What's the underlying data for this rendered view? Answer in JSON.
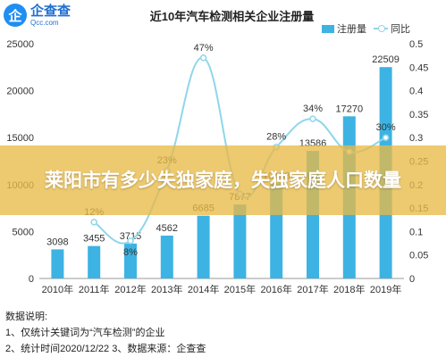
{
  "logo": {
    "mark": "企",
    "name_cn": "企查查",
    "name_en": "Qcc.com"
  },
  "banner_text": "莱阳市有多少失独家庭，失独家庭人口数量",
  "colors": {
    "bar": "#3db3e3",
    "line": "#8fd6ea",
    "banner": "#e8ba46"
  },
  "chart_data": {
    "type": "bar",
    "title": "近10年汽车检测相关企业注册量",
    "categories": [
      "2010年",
      "2011年",
      "2012年",
      "2013年",
      "2014年",
      "2015年",
      "2016年",
      "2017年",
      "2018年",
      "2019年"
    ],
    "series": [
      {
        "name": "注册量",
        "type": "bar",
        "axis": "left",
        "values": [
          3098,
          3455,
          3715,
          4562,
          6685,
          7877,
          10108,
          13586,
          17270,
          22509
        ]
      },
      {
        "name": "同比",
        "type": "line",
        "axis": "right",
        "values": [
          null,
          0.12,
          0.08,
          0.23,
          0.47,
          0.18,
          0.28,
          0.34,
          0.27,
          0.3
        ],
        "labels": [
          "",
          "12%",
          "8%",
          "23%",
          "47%",
          "",
          "28%",
          "34%",
          "",
          "30%"
        ]
      }
    ],
    "left_ylim": [
      0,
      25000
    ],
    "left_ticks": [
      "0",
      "5000",
      "10000",
      "15000",
      "20000",
      "25000"
    ],
    "right_ylim": [
      0,
      0.5
    ],
    "right_ticks": [
      "0",
      "0.05",
      "0.1",
      "0.15",
      "0.2",
      "0.25",
      "0.3",
      "0.35",
      "0.4",
      "0.45",
      "0.5"
    ],
    "legend_position": "top-right"
  },
  "notes": {
    "heading": "数据说明:",
    "line1": "1、仅统计关键词为“汽车检测”的企业",
    "line2": "2、统计时间2020/12/22   3、数据来源：企查查"
  }
}
